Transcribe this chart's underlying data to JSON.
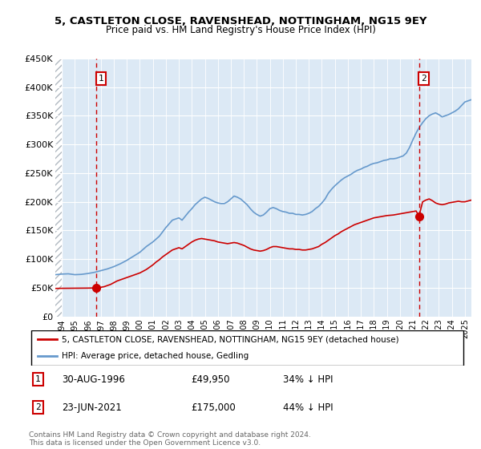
{
  "title": "5, CASTLETON CLOSE, RAVENSHEAD, NOTTINGHAM, NG15 9EY",
  "subtitle": "Price paid vs. HM Land Registry's House Price Index (HPI)",
  "legend_property": "5, CASTLETON CLOSE, RAVENSHEAD, NOTTINGHAM, NG15 9EY (detached house)",
  "legend_hpi": "HPI: Average price, detached house, Gedling",
  "sale1_date": "30-AUG-1996",
  "sale1_price": 49950,
  "sale1_label": "34% ↓ HPI",
  "sale2_date": "23-JUN-2021",
  "sale2_price": 175000,
  "sale2_label": "44% ↓ HPI",
  "footer": "Contains HM Land Registry data © Crown copyright and database right 2024.\nThis data is licensed under the Open Government Licence v3.0.",
  "ylim": [
    0,
    450000
  ],
  "xlim_start": 1993.5,
  "xlim_end": 2025.5,
  "plot_bg_color": "#dce9f5",
  "hatch_bg_color": "#ffffff",
  "hatch_color": "#b0b8c0",
  "red_line_color": "#cc0000",
  "blue_line_color": "#6699cc",
  "grid_color": "#ffffff",
  "sale1_x": 1996.66,
  "sale2_x": 2021.47,
  "hpi_points": [
    [
      1993.5,
      73000
    ],
    [
      1994.0,
      74000
    ],
    [
      1994.5,
      74500
    ],
    [
      1995.0,
      73000
    ],
    [
      1995.5,
      73500
    ],
    [
      1996.0,
      75000
    ],
    [
      1996.5,
      77000
    ],
    [
      1997.0,
      80000
    ],
    [
      1997.5,
      83000
    ],
    [
      1998.0,
      87000
    ],
    [
      1998.5,
      92000
    ],
    [
      1999.0,
      98000
    ],
    [
      1999.5,
      105000
    ],
    [
      2000.0,
      112000
    ],
    [
      2000.5,
      122000
    ],
    [
      2001.0,
      130000
    ],
    [
      2001.5,
      140000
    ],
    [
      2002.0,
      155000
    ],
    [
      2002.5,
      168000
    ],
    [
      2003.0,
      172000
    ],
    [
      2003.25,
      168000
    ],
    [
      2003.5,
      175000
    ],
    [
      2003.75,
      182000
    ],
    [
      2004.0,
      188000
    ],
    [
      2004.25,
      195000
    ],
    [
      2004.5,
      200000
    ],
    [
      2004.75,
      205000
    ],
    [
      2005.0,
      208000
    ],
    [
      2005.25,
      206000
    ],
    [
      2005.5,
      203000
    ],
    [
      2005.75,
      200000
    ],
    [
      2006.0,
      198000
    ],
    [
      2006.25,
      197000
    ],
    [
      2006.5,
      197000
    ],
    [
      2006.75,
      200000
    ],
    [
      2007.0,
      205000
    ],
    [
      2007.25,
      210000
    ],
    [
      2007.5,
      208000
    ],
    [
      2007.75,
      205000
    ],
    [
      2008.0,
      200000
    ],
    [
      2008.25,
      195000
    ],
    [
      2008.5,
      188000
    ],
    [
      2008.75,
      182000
    ],
    [
      2009.0,
      178000
    ],
    [
      2009.25,
      175000
    ],
    [
      2009.5,
      177000
    ],
    [
      2009.75,
      182000
    ],
    [
      2010.0,
      188000
    ],
    [
      2010.25,
      190000
    ],
    [
      2010.5,
      188000
    ],
    [
      2010.75,
      185000
    ],
    [
      2011.0,
      183000
    ],
    [
      2011.25,
      182000
    ],
    [
      2011.5,
      180000
    ],
    [
      2011.75,
      180000
    ],
    [
      2012.0,
      178000
    ],
    [
      2012.25,
      178000
    ],
    [
      2012.5,
      177000
    ],
    [
      2012.75,
      178000
    ],
    [
      2013.0,
      180000
    ],
    [
      2013.25,
      183000
    ],
    [
      2013.5,
      188000
    ],
    [
      2013.75,
      192000
    ],
    [
      2014.0,
      198000
    ],
    [
      2014.25,
      205000
    ],
    [
      2014.5,
      215000
    ],
    [
      2014.75,
      222000
    ],
    [
      2015.0,
      228000
    ],
    [
      2015.25,
      233000
    ],
    [
      2015.5,
      238000
    ],
    [
      2015.75,
      242000
    ],
    [
      2016.0,
      245000
    ],
    [
      2016.25,
      248000
    ],
    [
      2016.5,
      252000
    ],
    [
      2016.75,
      255000
    ],
    [
      2017.0,
      257000
    ],
    [
      2017.25,
      260000
    ],
    [
      2017.5,
      262000
    ],
    [
      2017.75,
      265000
    ],
    [
      2018.0,
      267000
    ],
    [
      2018.25,
      268000
    ],
    [
      2018.5,
      270000
    ],
    [
      2018.75,
      272000
    ],
    [
      2019.0,
      273000
    ],
    [
      2019.25,
      275000
    ],
    [
      2019.5,
      275000
    ],
    [
      2019.75,
      276000
    ],
    [
      2020.0,
      278000
    ],
    [
      2020.25,
      280000
    ],
    [
      2020.5,
      285000
    ],
    [
      2020.75,
      295000
    ],
    [
      2021.0,
      308000
    ],
    [
      2021.25,
      320000
    ],
    [
      2021.5,
      330000
    ],
    [
      2021.75,
      338000
    ],
    [
      2022.0,
      345000
    ],
    [
      2022.25,
      350000
    ],
    [
      2022.5,
      353000
    ],
    [
      2022.75,
      355000
    ],
    [
      2023.0,
      352000
    ],
    [
      2023.25,
      348000
    ],
    [
      2023.5,
      350000
    ],
    [
      2023.75,
      352000
    ],
    [
      2024.0,
      355000
    ],
    [
      2024.25,
      358000
    ],
    [
      2024.5,
      362000
    ],
    [
      2024.75,
      368000
    ],
    [
      2025.0,
      374000
    ],
    [
      2025.5,
      378000
    ]
  ],
  "red_points": [
    [
      1993.5,
      49000
    ],
    [
      1994.0,
      49200
    ],
    [
      1994.5,
      49300
    ],
    [
      1995.0,
      49400
    ],
    [
      1995.5,
      49500
    ],
    [
      1996.0,
      49600
    ],
    [
      1996.66,
      49950
    ],
    [
      1997.0,
      51000
    ],
    [
      1997.25,
      52000
    ],
    [
      1997.5,
      54000
    ],
    [
      1997.75,
      56000
    ],
    [
      1998.0,
      59000
    ],
    [
      1998.25,
      62000
    ],
    [
      1998.5,
      64000
    ],
    [
      1998.75,
      66000
    ],
    [
      1999.0,
      68000
    ],
    [
      1999.25,
      70000
    ],
    [
      1999.5,
      72000
    ],
    [
      1999.75,
      74000
    ],
    [
      2000.0,
      76000
    ],
    [
      2000.25,
      79000
    ],
    [
      2000.5,
      82000
    ],
    [
      2000.75,
      86000
    ],
    [
      2001.0,
      90000
    ],
    [
      2001.25,
      95000
    ],
    [
      2001.5,
      99000
    ],
    [
      2001.75,
      104000
    ],
    [
      2002.0,
      108000
    ],
    [
      2002.25,
      112000
    ],
    [
      2002.5,
      116000
    ],
    [
      2002.75,
      118000
    ],
    [
      2003.0,
      120000
    ],
    [
      2003.25,
      118000
    ],
    [
      2003.5,
      122000
    ],
    [
      2003.75,
      126000
    ],
    [
      2004.0,
      130000
    ],
    [
      2004.25,
      133000
    ],
    [
      2004.5,
      135000
    ],
    [
      2004.75,
      136000
    ],
    [
      2005.0,
      135000
    ],
    [
      2005.25,
      134000
    ],
    [
      2005.5,
      133000
    ],
    [
      2005.75,
      132000
    ],
    [
      2006.0,
      130000
    ],
    [
      2006.25,
      129000
    ],
    [
      2006.5,
      128000
    ],
    [
      2006.75,
      127000
    ],
    [
      2007.0,
      128000
    ],
    [
      2007.25,
      129000
    ],
    [
      2007.5,
      128000
    ],
    [
      2007.75,
      126000
    ],
    [
      2008.0,
      124000
    ],
    [
      2008.25,
      121000
    ],
    [
      2008.5,
      118000
    ],
    [
      2008.75,
      116000
    ],
    [
      2009.0,
      115000
    ],
    [
      2009.25,
      114000
    ],
    [
      2009.5,
      115000
    ],
    [
      2009.75,
      117000
    ],
    [
      2010.0,
      120000
    ],
    [
      2010.25,
      122000
    ],
    [
      2010.5,
      122000
    ],
    [
      2010.75,
      121000
    ],
    [
      2011.0,
      120000
    ],
    [
      2011.25,
      119000
    ],
    [
      2011.5,
      118000
    ],
    [
      2011.75,
      118000
    ],
    [
      2012.0,
      117000
    ],
    [
      2012.25,
      117000
    ],
    [
      2012.5,
      116000
    ],
    [
      2012.75,
      116000
    ],
    [
      2013.0,
      117000
    ],
    [
      2013.25,
      118000
    ],
    [
      2013.5,
      120000
    ],
    [
      2013.75,
      122000
    ],
    [
      2014.0,
      126000
    ],
    [
      2014.25,
      129000
    ],
    [
      2014.5,
      133000
    ],
    [
      2014.75,
      137000
    ],
    [
      2015.0,
      141000
    ],
    [
      2015.25,
      144000
    ],
    [
      2015.5,
      148000
    ],
    [
      2015.75,
      151000
    ],
    [
      2016.0,
      154000
    ],
    [
      2016.25,
      157000
    ],
    [
      2016.5,
      160000
    ],
    [
      2016.75,
      162000
    ],
    [
      2017.0,
      164000
    ],
    [
      2017.25,
      166000
    ],
    [
      2017.5,
      168000
    ],
    [
      2017.75,
      170000
    ],
    [
      2018.0,
      172000
    ],
    [
      2018.25,
      173000
    ],
    [
      2018.5,
      174000
    ],
    [
      2018.75,
      175000
    ],
    [
      2019.0,
      176000
    ],
    [
      2019.25,
      176500
    ],
    [
      2019.5,
      177000
    ],
    [
      2019.75,
      178000
    ],
    [
      2020.0,
      179000
    ],
    [
      2020.25,
      180000
    ],
    [
      2020.5,
      181000
    ],
    [
      2020.75,
      182000
    ],
    [
      2021.0,
      183000
    ],
    [
      2021.25,
      184000
    ],
    [
      2021.47,
      175000
    ],
    [
      2021.75,
      200000
    ],
    [
      2022.0,
      203000
    ],
    [
      2022.25,
      205000
    ],
    [
      2022.5,
      202000
    ],
    [
      2022.75,
      198000
    ],
    [
      2023.0,
      196000
    ],
    [
      2023.25,
      195000
    ],
    [
      2023.5,
      196000
    ],
    [
      2023.75,
      198000
    ],
    [
      2024.0,
      199000
    ],
    [
      2024.25,
      200000
    ],
    [
      2024.5,
      201000
    ],
    [
      2024.75,
      200000
    ],
    [
      2025.0,
      200000
    ],
    [
      2025.5,
      203000
    ]
  ]
}
